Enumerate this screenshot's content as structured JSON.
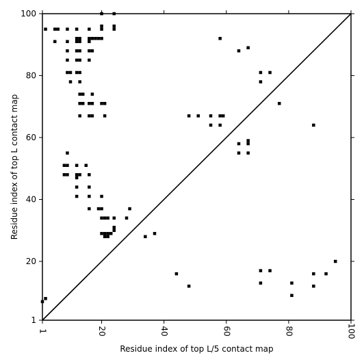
{
  "chart_data": {
    "type": "scatter",
    "xlabel": "Residue index of top L/5 contact map",
    "ylabel": "Residue index of top L contact map",
    "xlim": [
      1,
      100
    ],
    "ylim": [
      1,
      100
    ],
    "xticks": [
      1,
      20,
      40,
      60,
      80,
      100
    ],
    "yticks": [
      1,
      20,
      40,
      60,
      80,
      100
    ],
    "x_tick_labels": [
      "1",
      "20",
      "40",
      "60",
      "80",
      "100"
    ],
    "y_tick_labels": [
      "1",
      "20",
      "40",
      "60",
      "80",
      "100"
    ],
    "x_tick_labels_rotated": true,
    "grid": false,
    "legend": false,
    "diagonal": true,
    "marker": "square",
    "marker_color": "#000000",
    "series": [
      {
        "description": "top L contacts (upper-left triangle)",
        "points": [
          [
            2,
            95
          ],
          [
            5,
            95
          ],
          [
            6,
            95
          ],
          [
            9,
            95
          ],
          [
            12,
            95
          ],
          [
            16,
            95
          ],
          [
            20,
            95
          ],
          [
            24,
            95
          ],
          [
            20,
            96
          ],
          [
            24,
            96
          ],
          [
            20,
            100
          ],
          [
            24,
            100
          ],
          [
            5,
            91
          ],
          [
            9,
            91
          ],
          [
            12,
            91
          ],
          [
            13,
            91
          ],
          [
            12,
            92
          ],
          [
            13,
            92
          ],
          [
            16,
            91
          ],
          [
            16,
            92
          ],
          [
            17,
            92
          ],
          [
            18,
            92
          ],
          [
            19,
            92
          ],
          [
            20,
            92
          ],
          [
            9,
            88
          ],
          [
            12,
            88
          ],
          [
            13,
            88
          ],
          [
            16,
            88
          ],
          [
            17,
            88
          ],
          [
            9,
            85
          ],
          [
            12,
            85
          ],
          [
            13,
            85
          ],
          [
            16,
            85
          ],
          [
            9,
            81
          ],
          [
            10,
            81
          ],
          [
            12,
            81
          ],
          [
            13,
            81
          ],
          [
            10,
            78
          ],
          [
            13,
            78
          ],
          [
            13,
            74
          ],
          [
            14,
            74
          ],
          [
            17,
            74
          ],
          [
            13,
            71
          ],
          [
            14,
            71
          ],
          [
            16,
            71
          ],
          [
            17,
            71
          ],
          [
            20,
            71
          ],
          [
            21,
            71
          ],
          [
            13,
            67
          ],
          [
            16,
            67
          ],
          [
            17,
            67
          ],
          [
            21,
            67
          ],
          [
            9,
            55
          ],
          [
            8,
            51
          ],
          [
            9,
            51
          ],
          [
            12,
            51
          ],
          [
            15,
            51
          ],
          [
            8,
            48
          ],
          [
            9,
            48
          ],
          [
            12,
            48
          ],
          [
            13,
            48
          ],
          [
            16,
            48
          ],
          [
            12,
            47
          ],
          [
            12,
            44
          ],
          [
            16,
            44
          ],
          [
            12,
            41
          ],
          [
            16,
            41
          ],
          [
            20,
            41
          ],
          [
            16,
            37
          ],
          [
            19,
            37
          ],
          [
            20,
            37
          ],
          [
            29,
            37
          ],
          [
            20,
            34
          ],
          [
            21,
            34
          ],
          [
            22,
            34
          ],
          [
            24,
            34
          ],
          [
            28,
            34
          ],
          [
            24,
            31
          ],
          [
            24,
            30
          ],
          [
            20,
            29
          ],
          [
            21,
            29
          ],
          [
            22,
            29
          ],
          [
            23,
            29
          ],
          [
            21,
            28
          ],
          [
            22,
            28
          ],
          [
            34,
            28
          ],
          [
            37,
            29
          ],
          [
            58,
            92
          ],
          [
            64,
            88
          ],
          [
            67,
            89
          ],
          [
            71,
            81
          ],
          [
            74,
            81
          ],
          [
            71,
            78
          ],
          [
            77,
            71
          ],
          [
            48,
            67
          ],
          [
            51,
            67
          ],
          [
            55,
            67
          ],
          [
            58,
            67
          ],
          [
            59,
            67
          ],
          [
            55,
            64
          ],
          [
            58,
            64
          ],
          [
            88,
            64
          ],
          [
            64,
            58
          ],
          [
            67,
            58
          ],
          [
            67,
            59
          ],
          [
            64,
            55
          ],
          [
            67,
            55
          ]
        ]
      },
      {
        "description": "top L/5 contacts (lower-right triangle)",
        "points": [
          [
            1,
            7
          ],
          [
            2,
            8
          ],
          [
            44,
            16
          ],
          [
            48,
            12
          ],
          [
            71,
            17
          ],
          [
            74,
            17
          ],
          [
            71,
            13
          ],
          [
            81,
            13
          ],
          [
            81,
            9
          ],
          [
            88,
            16
          ],
          [
            88,
            12
          ],
          [
            92,
            16
          ],
          [
            95,
            20
          ]
        ]
      }
    ]
  }
}
